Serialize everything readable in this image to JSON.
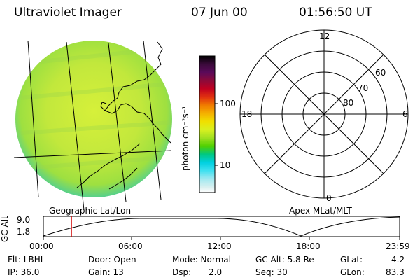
{
  "header": {
    "title": "Ultraviolet Imager",
    "date": "07 Jun 00",
    "time": "01:56:50 UT"
  },
  "colorbar": {
    "unit_label": "photon cm⁻²s⁻¹",
    "ticks": [
      "100",
      "10"
    ],
    "colors": [
      "#000000",
      "#3a0a3a",
      "#5a0a5a",
      "#8b0a3a",
      "#c00020",
      "#e03010",
      "#f07a00",
      "#f5b000",
      "#f0e000",
      "#d8f020",
      "#a0e020",
      "#50d000",
      "#00c880",
      "#00d0e0",
      "#40e0f0",
      "#a0e8f0",
      "#d8f0f0",
      "#ffffff"
    ]
  },
  "image_panel": {
    "label": "Geographic Lat/Lon",
    "colors": {
      "disk": "#c4e83c",
      "disk_edge": "#4ecfb0",
      "outline": "#000000"
    }
  },
  "polar_panel": {
    "label": "Apex MLat/MLT",
    "mlt_labels": [
      "12",
      "18",
      "6",
      "0"
    ],
    "mlat_labels": [
      "60",
      "70",
      "80"
    ]
  },
  "altitude_strip": {
    "axis_label": "GC Alt",
    "y_ticks": [
      "9.0",
      "1.8"
    ],
    "x_ticks": [
      "00:00",
      "06:00",
      "12:00",
      "18:00",
      "23:59"
    ],
    "marker_color": "#d00000"
  },
  "info": {
    "row1": {
      "flt": "Flt: LBHL",
      "door": "Door: Open",
      "mode": "Mode: Normal",
      "gcalt": "GC Alt: 5.8 Re",
      "glat_label": "GLat:",
      "glat_value": "4.2"
    },
    "row2": {
      "ip": "IP: 36.0",
      "gain": "Gain: 13",
      "dsp_label": "Dsp:",
      "dsp_value": "2.0",
      "seq": "Seq: 30",
      "glon_label": "GLon:",
      "glon_value": "83.3"
    }
  }
}
